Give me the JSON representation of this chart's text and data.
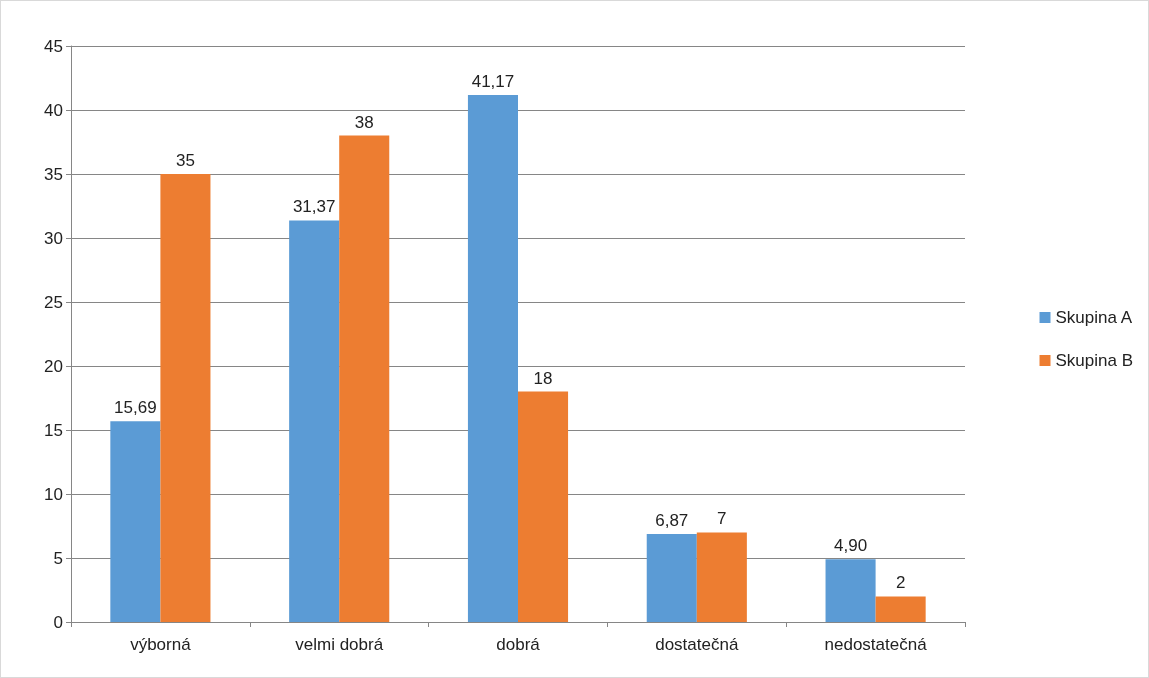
{
  "chart_data": {
    "type": "bar",
    "categories": [
      "výborná",
      "velmi dobrá",
      "dobrá",
      "dostatečná",
      "nedostatečná"
    ],
    "series": [
      {
        "name": "Skupina A",
        "color": "#5b9bd5",
        "values": [
          15.69,
          31.37,
          41.17,
          6.87,
          4.9
        ],
        "value_labels": [
          "15,69",
          "31,37",
          "41,17",
          "6,87",
          "4,90"
        ]
      },
      {
        "name": "Skupina B",
        "color": "#ed7d31",
        "values": [
          35,
          38,
          18,
          7,
          2
        ],
        "value_labels": [
          "35",
          "38",
          "18",
          "7",
          "2"
        ]
      }
    ],
    "ylim": [
      0,
      45
    ],
    "yticks": [
      0,
      5,
      10,
      15,
      20,
      25,
      30,
      35,
      40,
      45
    ],
    "grid": "y",
    "legend": "right"
  }
}
